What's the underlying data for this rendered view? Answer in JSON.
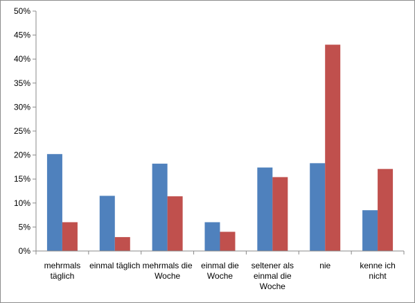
{
  "chart_data": {
    "type": "bar",
    "title": "",
    "xlabel": "",
    "ylabel": "",
    "ylim": [
      0,
      50
    ],
    "y_ticks": [
      "0%",
      "5%",
      "10%",
      "15%",
      "20%",
      "25%",
      "30%",
      "35%",
      "40%",
      "45%",
      "50%"
    ],
    "y_unit": "%",
    "grid": false,
    "legend": "none",
    "categories": [
      [
        "mehrmals",
        "täglich"
      ],
      [
        "einmal täglich"
      ],
      [
        "mehrmals die",
        "Woche"
      ],
      [
        "einmal die",
        "Woche"
      ],
      [
        "seltener als",
        "einmal die",
        "Woche"
      ],
      [
        "nie"
      ],
      [
        "kenne ich",
        "nicht"
      ]
    ],
    "series": [
      {
        "color": "#4f81bd",
        "values": [
          20.2,
          11.5,
          18.2,
          6.0,
          17.4,
          18.3,
          8.5
        ]
      },
      {
        "color": "#c0504d",
        "values": [
          6.0,
          2.9,
          11.4,
          4.0,
          15.4,
          43.0,
          17.1
        ]
      }
    ]
  }
}
